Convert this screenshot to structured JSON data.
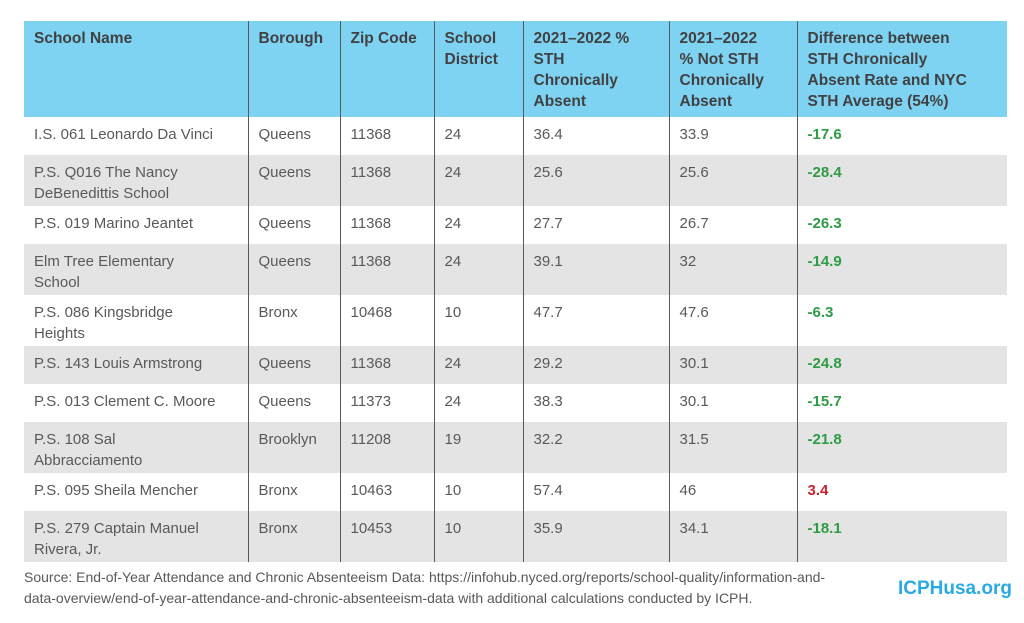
{
  "table": {
    "headers": [
      "School Name",
      "Borough",
      "Zip Code",
      "School\nDistrict",
      "2021–2022 %\nSTH\nChronically\nAbsent",
      "2021–2022\n% Not STH\nChronically\nAbsent",
      "Difference between\nSTH Chronically\nAbsent Rate and NYC\nSTH Average (54%)"
    ],
    "rows": [
      {
        "cells": [
          "I.S. 061 Leonardo Da Vinci",
          "Queens",
          "11368",
          "24",
          "36.4",
          "33.9",
          "-17.6"
        ],
        "diff_color": "green"
      },
      {
        "cells": [
          "P.S. Q016 The Nancy\nDeBenedittis School",
          "Queens",
          "11368",
          "24",
          "25.6",
          "25.6",
          "-28.4"
        ],
        "diff_color": "green"
      },
      {
        "cells": [
          "P.S. 019 Marino Jeantet",
          "Queens",
          "11368",
          "24",
          "27.7",
          "26.7",
          "-26.3"
        ],
        "diff_color": "green"
      },
      {
        "cells": [
          "Elm Tree Elementary\nSchool",
          "Queens",
          "11368",
          "24",
          "39.1",
          "32",
          "-14.9"
        ],
        "diff_color": "green"
      },
      {
        "cells": [
          "P.S. 086 Kingsbridge\nHeights",
          "Bronx",
          "10468",
          "10",
          "47.7",
          "47.6",
          "-6.3"
        ],
        "diff_color": "green"
      },
      {
        "cells": [
          "P.S. 143 Louis Armstrong",
          "Queens",
          "11368",
          "24",
          "29.2",
          "30.1",
          "-24.8"
        ],
        "diff_color": "green"
      },
      {
        "cells": [
          "P.S. 013 Clement C. Moore",
          "Queens",
          "11373",
          "24",
          "38.3",
          "30.1",
          "-15.7"
        ],
        "diff_color": "green"
      },
      {
        "cells": [
          "P.S. 108 Sal\nAbbracciamento",
          "Brooklyn",
          "11208",
          "19",
          "32.2",
          "31.5",
          "-21.8"
        ],
        "diff_color": "green"
      },
      {
        "cells": [
          "P.S. 095 Sheila Mencher",
          "Bronx",
          "10463",
          "10",
          "57.4",
          "46",
          "3.4"
        ],
        "diff_color": "red"
      },
      {
        "cells": [
          "P.S. 279 Captain Manuel\nRivera, Jr.",
          "Bronx",
          "10453",
          "10",
          "35.9",
          "34.1",
          "-18.1"
        ],
        "diff_color": "green"
      }
    ]
  },
  "footer": {
    "source": "Source: End-of-Year Attendance and Chronic Absenteeism Data: https://infohub.nyced.org/reports/school-quality/information-and-\ndata-overview/end-of-year-attendance-and-chronic-absenteeism-data with additional calculations conducted by ICPH.",
    "logo": "ICPHusa.org"
  },
  "colors": {
    "header_bg": "#7ED3F2",
    "row_alt_bg": "#E4E4E4",
    "header_text": "#414042",
    "body_text": "#58595B",
    "column_divider": "#59595B",
    "negative_diff_green": "#2E9B45",
    "positive_diff_red": "#CC2127",
    "logo_blue": "#29ABE2"
  }
}
